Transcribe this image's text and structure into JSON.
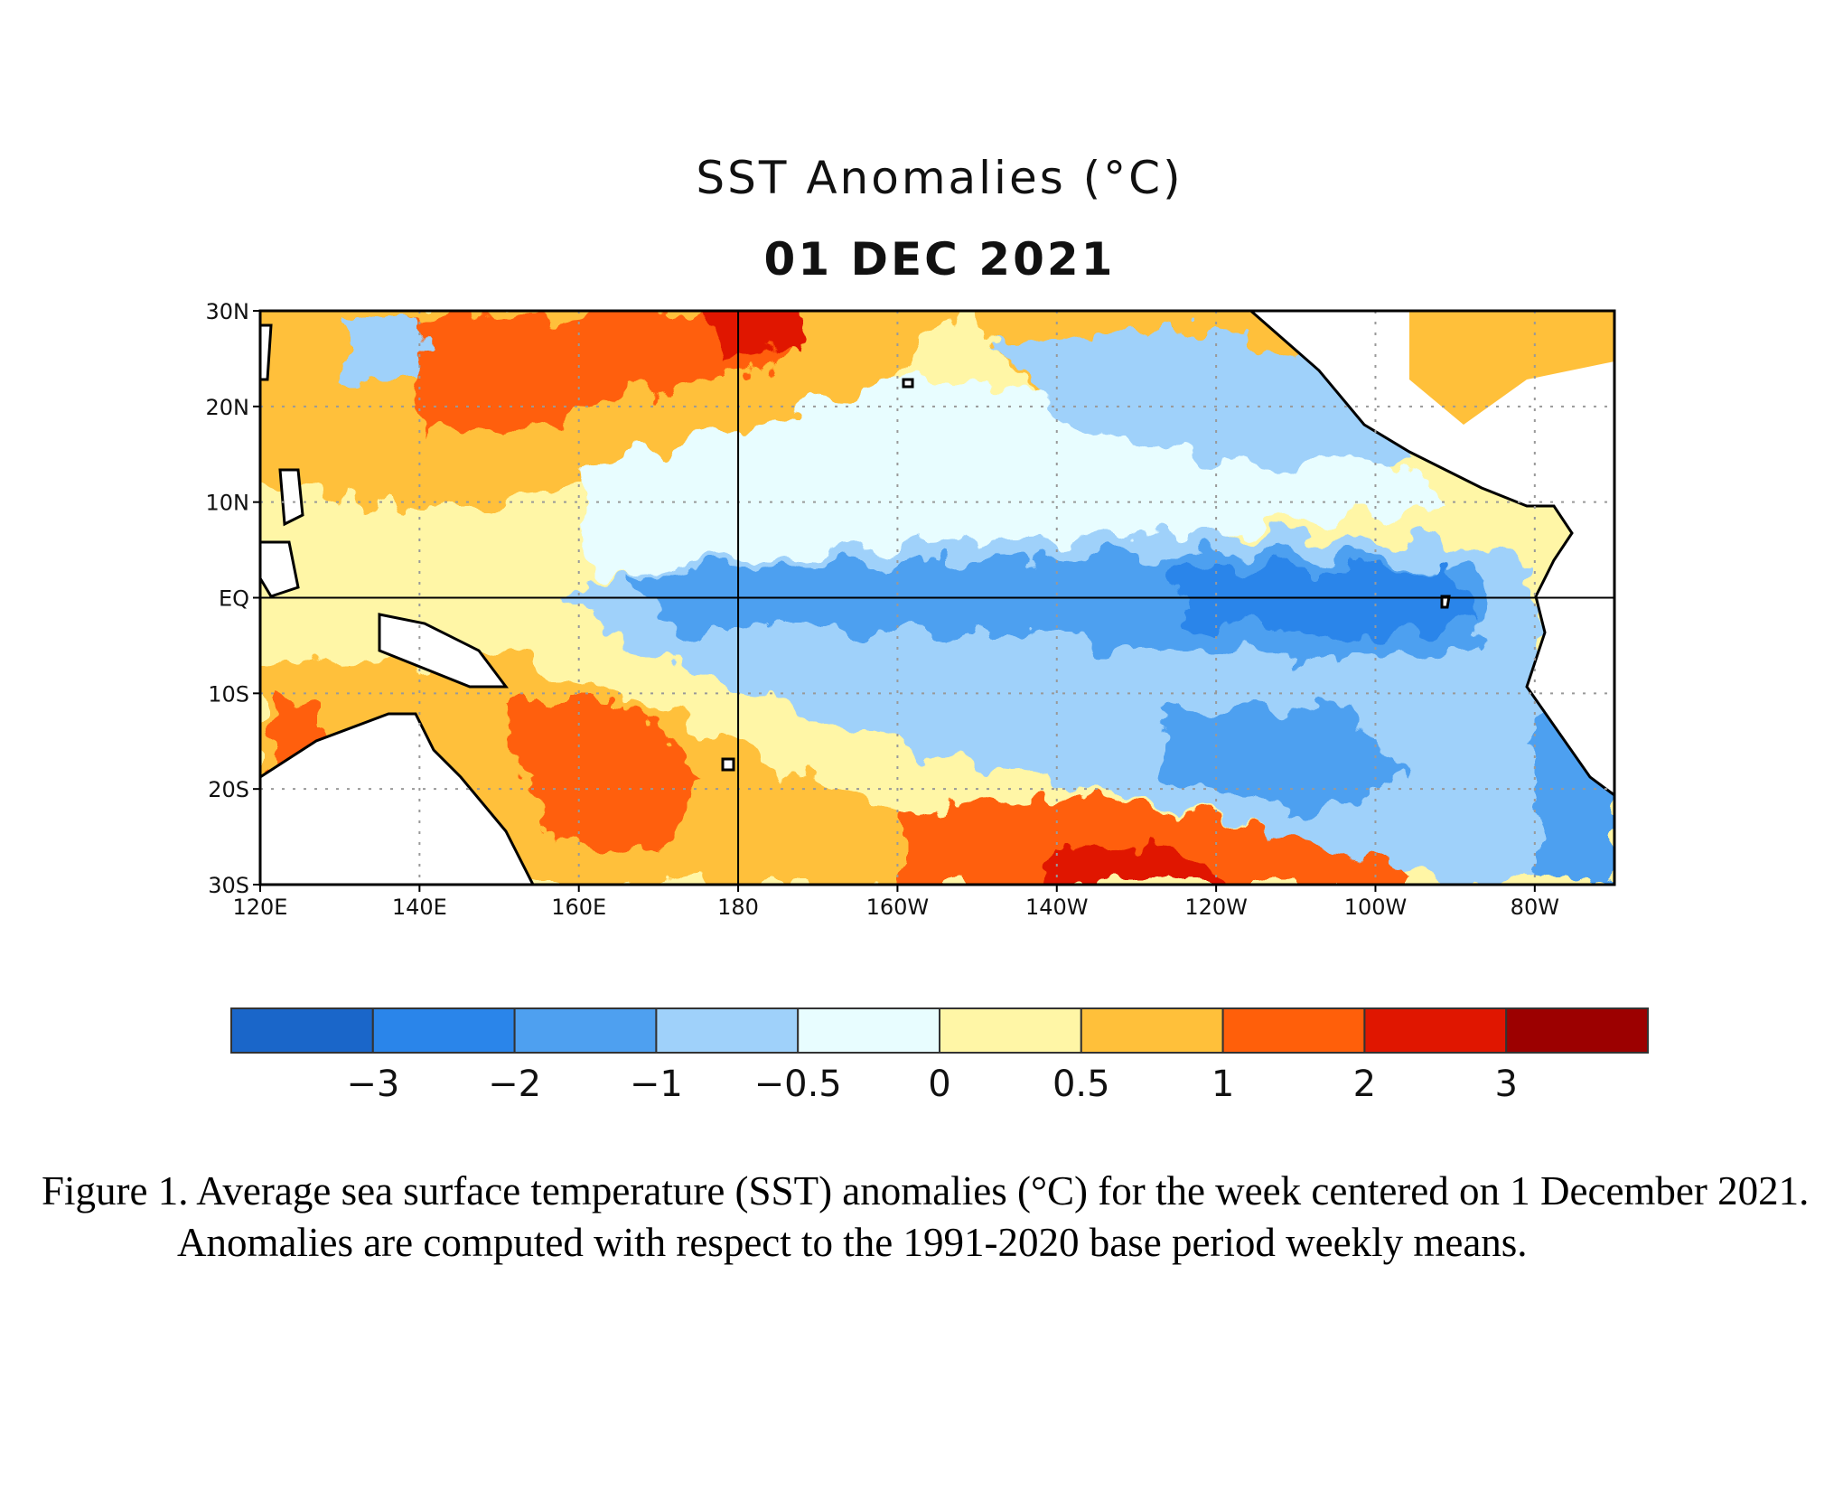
{
  "figure": {
    "title": "SST Anomalies (°C)",
    "date": "01 DEC 2021",
    "caption": "Figure 1. Average sea surface temperature (SST) anomalies (°C) for the week centered on 1 December 2021.  Anomalies are computed with respect to the 1991-2020 base period weekly means."
  },
  "map": {
    "lon_range": [
      120,
      290
    ],
    "lat_range": [
      -30,
      30
    ],
    "x_ticks": [
      "120E",
      "140E",
      "160E",
      "180",
      "160W",
      "140W",
      "120W",
      "100W",
      "80W"
    ],
    "y_ticks": [
      "30N",
      "20N",
      "10N",
      "EQ",
      "10S",
      "20S",
      "30S"
    ],
    "gridlines": "dotted",
    "reference_lines": [
      "EQ",
      "180"
    ]
  },
  "colorbar": {
    "labels": [
      "−3",
      "−2",
      "−1",
      "−0.5",
      "0",
      "0.5",
      "1",
      "2",
      "3"
    ],
    "levels": [
      -3,
      -2,
      -1,
      -0.5,
      0,
      0.5,
      1,
      2,
      3
    ],
    "colors": [
      "#1a66c9",
      "#2a85ea",
      "#4ea0f0",
      "#9fd1fa",
      "#e8fdff",
      "#fff6a6",
      "#ffc03a",
      "#ff5f0a",
      "#e01600",
      "#9c0000"
    ]
  }
}
